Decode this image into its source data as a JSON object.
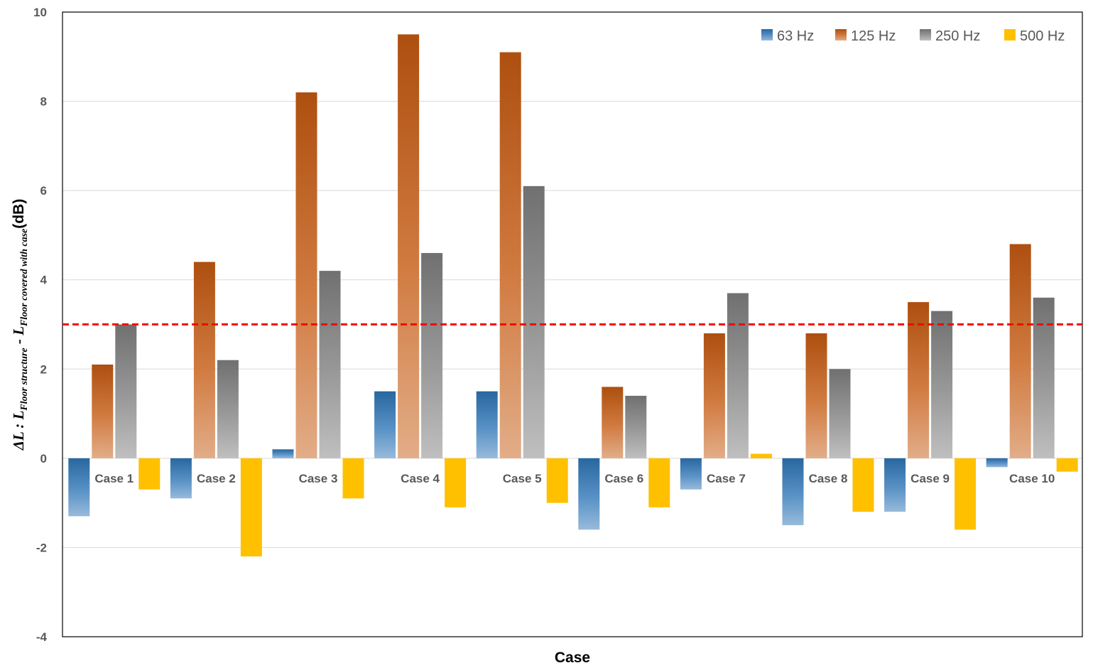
{
  "chart_data": {
    "type": "bar",
    "xlabel": "Case",
    "ylabel": {
      "prefix": "ΔL : L",
      "sub1": "Floor structure",
      "mid": " - L",
      "sub2": "Floor covered with case",
      "suffix": "(dB)"
    },
    "ylim": [
      -4,
      10
    ],
    "yticks": [
      -4,
      -2,
      0,
      2,
      4,
      6,
      8,
      10
    ],
    "grid": true,
    "legend_position": "top-right",
    "categories": [
      "Case 1",
      "Case 2",
      "Case 3",
      "Case 4",
      "Case 5",
      "Case 6",
      "Case 7",
      "Case 8",
      "Case 9",
      "Case 10"
    ],
    "series": [
      {
        "name": "63 Hz",
        "color": "#2E75B6",
        "values": [
          -1.3,
          -0.9,
          0.2,
          1.5,
          1.5,
          -1.6,
          -0.7,
          -1.5,
          -1.2,
          -0.2
        ]
      },
      {
        "name": "125 Hz",
        "color": "#C55A11",
        "values": [
          2.1,
          4.4,
          8.2,
          9.5,
          9.1,
          1.6,
          2.8,
          2.8,
          3.5,
          4.8
        ]
      },
      {
        "name": "250 Hz",
        "color": "#7F7F7F",
        "values": [
          3.0,
          2.2,
          4.2,
          4.6,
          6.1,
          1.4,
          3.7,
          2.0,
          3.3,
          3.6
        ]
      },
      {
        "name": "500 Hz",
        "color": "#FFC000",
        "values": [
          -0.7,
          -2.2,
          -0.9,
          -1.1,
          -1.0,
          -1.1,
          0.1,
          -1.2,
          -1.6,
          -0.3
        ]
      }
    ],
    "reference_line": {
      "value": 3,
      "color": "#FF0000",
      "style": "dashed"
    }
  }
}
